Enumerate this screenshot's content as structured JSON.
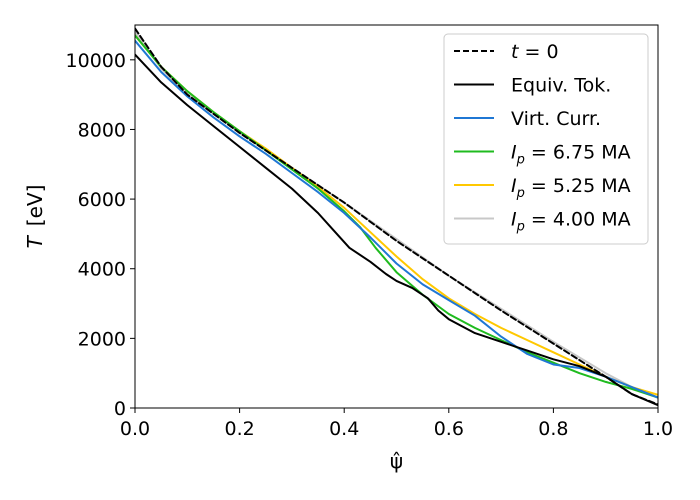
{
  "chart_data": {
    "type": "line",
    "xlabel": "ψ̂",
    "ylabel_italic": "T",
    "ylabel_unit": "[eV]",
    "xlim": [
      0.0,
      1.0
    ],
    "ylim": [
      0,
      11000
    ],
    "xticks": [
      0.0,
      0.2,
      0.4,
      0.6,
      0.8,
      1.0
    ],
    "xtick_labels": [
      "0.0",
      "0.2",
      "0.4",
      "0.6",
      "0.8",
      "1.0"
    ],
    "yticks": [
      0,
      2000,
      4000,
      6000,
      8000,
      10000
    ],
    "ytick_labels": [
      "0",
      "2000",
      "4000",
      "6000",
      "8000",
      "10000"
    ],
    "grid": false,
    "legend_position": "top-right",
    "series": [
      {
        "name": "t = 0",
        "legend_italic": "t",
        "legend_rest": " = 0",
        "color": "#000000",
        "dash": "dashed",
        "x": [
          0.0,
          0.05,
          0.1,
          0.2,
          0.3,
          0.4,
          0.5,
          0.6,
          0.7,
          0.8,
          0.9,
          0.95,
          1.0
        ],
        "y": [
          10900,
          9800,
          9000,
          7900,
          6900,
          5900,
          4800,
          3800,
          2800,
          1850,
          900,
          400,
          100
        ]
      },
      {
        "name": "Equiv. Tok.",
        "legend_italic": "",
        "legend_rest": "Equiv. Tok.",
        "color": "#000000",
        "dash": "solid",
        "x": [
          0.0,
          0.05,
          0.1,
          0.15,
          0.2,
          0.25,
          0.3,
          0.35,
          0.38,
          0.41,
          0.45,
          0.48,
          0.5,
          0.53,
          0.56,
          0.58,
          0.6,
          0.65,
          0.7,
          0.75,
          0.8,
          0.85,
          0.9,
          0.95,
          1.0
        ],
        "y": [
          10150,
          9350,
          8700,
          8100,
          7500,
          6900,
          6300,
          5600,
          5100,
          4600,
          4200,
          3850,
          3650,
          3450,
          3150,
          2800,
          2550,
          2150,
          1900,
          1650,
          1400,
          1200,
          900,
          400,
          80
        ]
      },
      {
        "name": "Virt. Curr.",
        "legend_italic": "",
        "legend_rest": "Virt. Curr.",
        "color": "#1f77d4",
        "dash": "solid",
        "x": [
          0.0,
          0.05,
          0.1,
          0.15,
          0.2,
          0.25,
          0.3,
          0.35,
          0.4,
          0.45,
          0.5,
          0.55,
          0.6,
          0.65,
          0.7,
          0.75,
          0.8,
          0.85,
          0.9,
          0.95,
          1.0
        ],
        "y": [
          10550,
          9650,
          8950,
          8350,
          7800,
          7300,
          6750,
          6200,
          5600,
          4900,
          4150,
          3550,
          3100,
          2650,
          2050,
          1550,
          1250,
          1150,
          900,
          600,
          300
        ]
      },
      {
        "name": "Ip = 6.75 MA",
        "legend_italic": "I",
        "legend_sub": "p",
        "legend_rest": " = 6.75 MA",
        "color": "#1fbb1f",
        "dash": "solid",
        "x": [
          0.0,
          0.05,
          0.1,
          0.15,
          0.2,
          0.25,
          0.3,
          0.35,
          0.4,
          0.43,
          0.46,
          0.5,
          0.55,
          0.6,
          0.65,
          0.7,
          0.75,
          0.8,
          0.85,
          0.9,
          0.95,
          1.0
        ],
        "y": [
          10700,
          9800,
          9100,
          8500,
          7950,
          7400,
          6850,
          6300,
          5650,
          5200,
          4600,
          3900,
          3250,
          2700,
          2300,
          1950,
          1600,
          1300,
          1000,
          750,
          550,
          300
        ]
      },
      {
        "name": "Ip = 5.25 MA",
        "legend_italic": "I",
        "legend_sub": "p",
        "legend_rest": " = 5.25 MA",
        "color": "#ffc800",
        "dash": "solid",
        "x": [
          0.0,
          0.05,
          0.1,
          0.15,
          0.2,
          0.25,
          0.3,
          0.35,
          0.4,
          0.45,
          0.5,
          0.55,
          0.6,
          0.65,
          0.7,
          0.75,
          0.8,
          0.85,
          0.9,
          0.95,
          1.0
        ],
        "y": [
          10700,
          9800,
          9100,
          8500,
          7950,
          7450,
          6900,
          6350,
          5750,
          5050,
          4350,
          3700,
          3150,
          2700,
          2300,
          1950,
          1600,
          1250,
          900,
          600,
          380
        ]
      },
      {
        "name": "Ip = 4.00 MA",
        "legend_italic": "I",
        "legend_sub": "p",
        "legend_rest": " = 4.00 MA",
        "color": "#c8c8c8",
        "dash": "solid",
        "x": [
          0.0,
          0.05,
          0.1,
          0.2,
          0.3,
          0.4,
          0.5,
          0.6,
          0.7,
          0.8,
          0.9,
          0.95,
          1.0
        ],
        "y": [
          10800,
          9750,
          9000,
          7900,
          6900,
          5900,
          4850,
          3800,
          2850,
          1900,
          1000,
          600,
          300
        ]
      }
    ]
  }
}
